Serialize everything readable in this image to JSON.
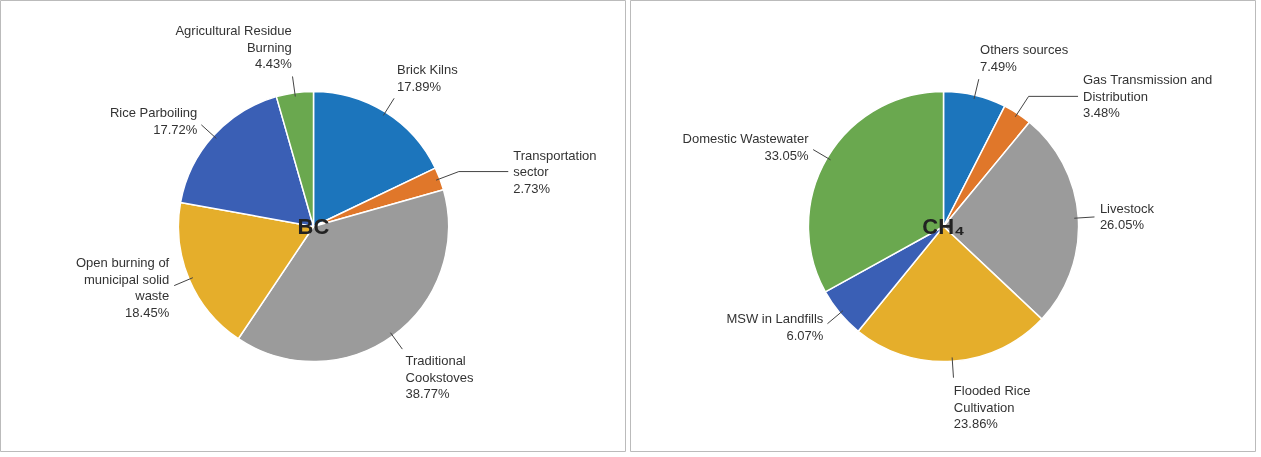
{
  "chart_data": [
    {
      "type": "pie",
      "title": "BC",
      "legend": false,
      "categories": [
        "Brick Kilns",
        "Transportation sector",
        "Traditional Cookstoves",
        "Open burning of municipal solid waste",
        "Rice Parboiling",
        "Agricultural Residue Burning"
      ],
      "values": [
        17.89,
        2.73,
        38.77,
        18.45,
        17.72,
        4.43
      ],
      "value_labels": [
        "17.89%",
        "2.73%",
        "38.77%",
        "18.45%",
        "17.72%",
        "4.43%"
      ],
      "colors": [
        "#1c75bc",
        "#e0772a",
        "#9b9b9b",
        "#e5ae2b",
        "#3a5fb5",
        "#6aa84f"
      ]
    },
    {
      "type": "pie",
      "title": "CH₄",
      "legend": false,
      "categories": [
        "Others sources",
        "Gas Transmission and Distribution",
        "Livestock",
        "Flooded Rice Cultivation",
        "MSW in Landfills",
        "Domestic Wastewater"
      ],
      "values": [
        7.49,
        3.48,
        26.05,
        23.86,
        6.07,
        33.05
      ],
      "value_labels": [
        "7.49%",
        "3.48%",
        "26.05%",
        "23.86%",
        "6.07%",
        "33.05%"
      ],
      "colors": [
        "#1c75bc",
        "#e0772a",
        "#9b9b9b",
        "#e5ae2b",
        "#3a5fb5",
        "#6aa84f"
      ]
    }
  ]
}
